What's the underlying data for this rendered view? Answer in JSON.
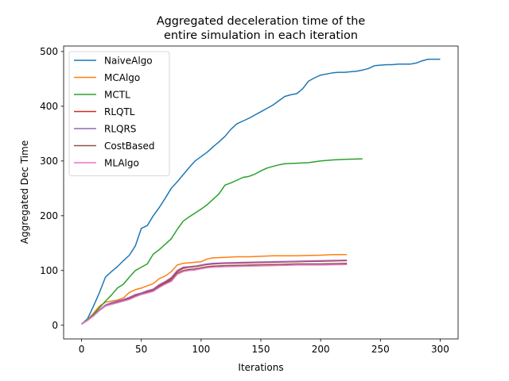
{
  "chart_data": {
    "type": "line",
    "title": "Aggregated deceleration time of the\nentire simulation in each iteration",
    "xlabel": "Iterations",
    "ylabel": "Aggregated Dec Time",
    "xlim": [
      -15,
      315
    ],
    "ylim": [
      -25,
      510
    ],
    "xticks": [
      0,
      50,
      100,
      150,
      200,
      250,
      300
    ],
    "yticks": [
      0,
      100,
      200,
      300,
      400,
      500
    ],
    "grid": false,
    "legend_position": "top-left",
    "series": [
      {
        "name": "NaiveAlgo",
        "color": "#1f77b4",
        "points": [
          [
            0,
            2
          ],
          [
            5,
            12
          ],
          [
            10,
            35
          ],
          [
            15,
            60
          ],
          [
            20,
            88
          ],
          [
            25,
            98
          ],
          [
            30,
            107
          ],
          [
            35,
            118
          ],
          [
            40,
            128
          ],
          [
            45,
            145
          ],
          [
            50,
            177
          ],
          [
            55,
            182
          ],
          [
            60,
            200
          ],
          [
            65,
            215
          ],
          [
            70,
            232
          ],
          [
            75,
            250
          ],
          [
            80,
            262
          ],
          [
            85,
            275
          ],
          [
            90,
            288
          ],
          [
            95,
            300
          ],
          [
            100,
            308
          ],
          [
            105,
            316
          ],
          [
            110,
            326
          ],
          [
            115,
            335
          ],
          [
            120,
            345
          ],
          [
            125,
            358
          ],
          [
            130,
            368
          ],
          [
            135,
            373
          ],
          [
            140,
            378
          ],
          [
            145,
            384
          ],
          [
            150,
            390
          ],
          [
            155,
            396
          ],
          [
            160,
            402
          ],
          [
            165,
            410
          ],
          [
            170,
            418
          ],
          [
            175,
            421
          ],
          [
            180,
            423
          ],
          [
            185,
            432
          ],
          [
            190,
            446
          ],
          [
            195,
            452
          ],
          [
            200,
            457
          ],
          [
            205,
            459
          ],
          [
            210,
            461
          ],
          [
            215,
            462
          ],
          [
            220,
            462
          ],
          [
            225,
            463
          ],
          [
            230,
            464
          ],
          [
            235,
            466
          ],
          [
            240,
            469
          ],
          [
            245,
            474
          ],
          [
            250,
            475
          ],
          [
            255,
            476
          ],
          [
            260,
            476
          ],
          [
            265,
            477
          ],
          [
            270,
            477
          ],
          [
            275,
            477
          ],
          [
            280,
            479
          ],
          [
            285,
            483
          ],
          [
            290,
            486
          ],
          [
            295,
            486
          ],
          [
            300,
            486
          ]
        ]
      },
      {
        "name": "MCAlgo",
        "color": "#ff7f0e",
        "points": [
          [
            0,
            2
          ],
          [
            5,
            10
          ],
          [
            10,
            22
          ],
          [
            15,
            35
          ],
          [
            20,
            42
          ],
          [
            25,
            44
          ],
          [
            30,
            46
          ],
          [
            35,
            50
          ],
          [
            40,
            60
          ],
          [
            45,
            65
          ],
          [
            50,
            68
          ],
          [
            55,
            72
          ],
          [
            60,
            76
          ],
          [
            65,
            85
          ],
          [
            70,
            90
          ],
          [
            75,
            98
          ],
          [
            80,
            110
          ],
          [
            85,
            113
          ],
          [
            90,
            114
          ],
          [
            95,
            115
          ],
          [
            100,
            116
          ],
          [
            105,
            121
          ],
          [
            110,
            123
          ],
          [
            120,
            124
          ],
          [
            130,
            125
          ],
          [
            140,
            125
          ],
          [
            150,
            126
          ],
          [
            160,
            127
          ],
          [
            180,
            127
          ],
          [
            200,
            128
          ],
          [
            210,
            129
          ],
          [
            222,
            129
          ]
        ]
      },
      {
        "name": "MCTL",
        "color": "#2ca02c",
        "points": [
          [
            0,
            2
          ],
          [
            5,
            10
          ],
          [
            10,
            20
          ],
          [
            15,
            32
          ],
          [
            20,
            44
          ],
          [
            25,
            55
          ],
          [
            30,
            68
          ],
          [
            35,
            75
          ],
          [
            40,
            88
          ],
          [
            45,
            100
          ],
          [
            50,
            106
          ],
          [
            55,
            112
          ],
          [
            60,
            130
          ],
          [
            65,
            138
          ],
          [
            70,
            148
          ],
          [
            75,
            158
          ],
          [
            80,
            175
          ],
          [
            85,
            190
          ],
          [
            90,
            198
          ],
          [
            95,
            205
          ],
          [
            100,
            212
          ],
          [
            105,
            220
          ],
          [
            110,
            230
          ],
          [
            115,
            240
          ],
          [
            120,
            256
          ],
          [
            125,
            260
          ],
          [
            130,
            265
          ],
          [
            135,
            270
          ],
          [
            140,
            272
          ],
          [
            145,
            276
          ],
          [
            150,
            282
          ],
          [
            155,
            287
          ],
          [
            160,
            290
          ],
          [
            165,
            293
          ],
          [
            170,
            295
          ],
          [
            180,
            296
          ],
          [
            190,
            297
          ],
          [
            200,
            300
          ],
          [
            210,
            302
          ],
          [
            220,
            303
          ],
          [
            235,
            304
          ]
        ]
      },
      {
        "name": "RLQTL",
        "color": "#d62728",
        "points": [
          [
            0,
            2
          ],
          [
            5,
            9
          ],
          [
            10,
            18
          ],
          [
            15,
            28
          ],
          [
            20,
            36
          ],
          [
            25,
            40
          ],
          [
            30,
            43
          ],
          [
            35,
            46
          ],
          [
            40,
            50
          ],
          [
            45,
            55
          ],
          [
            50,
            58
          ],
          [
            55,
            62
          ],
          [
            60,
            65
          ],
          [
            65,
            72
          ],
          [
            70,
            78
          ],
          [
            75,
            85
          ],
          [
            80,
            98
          ],
          [
            85,
            104
          ],
          [
            90,
            106
          ],
          [
            95,
            107
          ],
          [
            100,
            109
          ],
          [
            105,
            111
          ],
          [
            110,
            112
          ],
          [
            120,
            113
          ],
          [
            140,
            114
          ],
          [
            160,
            115
          ],
          [
            180,
            116
          ],
          [
            200,
            117
          ],
          [
            222,
            118
          ]
        ]
      },
      {
        "name": "RLQRS",
        "color": "#9467bd",
        "points": [
          [
            0,
            2
          ],
          [
            5,
            9
          ],
          [
            10,
            18
          ],
          [
            15,
            28
          ],
          [
            20,
            37
          ],
          [
            25,
            41
          ],
          [
            30,
            44
          ],
          [
            35,
            47
          ],
          [
            40,
            51
          ],
          [
            45,
            56
          ],
          [
            50,
            59
          ],
          [
            55,
            63
          ],
          [
            60,
            66
          ],
          [
            65,
            74
          ],
          [
            70,
            80
          ],
          [
            75,
            87
          ],
          [
            80,
            100
          ],
          [
            85,
            106
          ],
          [
            90,
            107
          ],
          [
            95,
            108
          ],
          [
            100,
            110
          ],
          [
            105,
            112
          ],
          [
            110,
            113
          ],
          [
            120,
            114
          ],
          [
            140,
            115
          ],
          [
            160,
            116
          ],
          [
            180,
            117
          ],
          [
            200,
            118
          ],
          [
            222,
            119
          ]
        ]
      },
      {
        "name": "CostBased",
        "color": "#8c564b",
        "points": [
          [
            0,
            2
          ],
          [
            5,
            9
          ],
          [
            10,
            17
          ],
          [
            15,
            27
          ],
          [
            20,
            35
          ],
          [
            25,
            39
          ],
          [
            30,
            42
          ],
          [
            35,
            45
          ],
          [
            40,
            48
          ],
          [
            45,
            53
          ],
          [
            50,
            57
          ],
          [
            55,
            60
          ],
          [
            60,
            63
          ],
          [
            65,
            70
          ],
          [
            70,
            76
          ],
          [
            75,
            82
          ],
          [
            80,
            95
          ],
          [
            85,
            100
          ],
          [
            90,
            102
          ],
          [
            95,
            103
          ],
          [
            100,
            105
          ],
          [
            105,
            107
          ],
          [
            110,
            108
          ],
          [
            120,
            109
          ],
          [
            140,
            110
          ],
          [
            160,
            111
          ],
          [
            180,
            112
          ],
          [
            200,
            112
          ],
          [
            222,
            113
          ]
        ]
      },
      {
        "name": "MLAlgo",
        "color": "#e377c2",
        "points": [
          [
            0,
            2
          ],
          [
            5,
            9
          ],
          [
            10,
            17
          ],
          [
            15,
            27
          ],
          [
            20,
            35
          ],
          [
            25,
            38
          ],
          [
            30,
            41
          ],
          [
            35,
            44
          ],
          [
            40,
            47
          ],
          [
            45,
            52
          ],
          [
            50,
            56
          ],
          [
            55,
            59
          ],
          [
            60,
            62
          ],
          [
            65,
            69
          ],
          [
            70,
            75
          ],
          [
            75,
            80
          ],
          [
            80,
            93
          ],
          [
            85,
            98
          ],
          [
            90,
            100
          ],
          [
            95,
            101
          ],
          [
            100,
            103
          ],
          [
            105,
            105
          ],
          [
            110,
            106
          ],
          [
            120,
            107
          ],
          [
            140,
            108
          ],
          [
            160,
            109
          ],
          [
            180,
            110
          ],
          [
            200,
            110
          ],
          [
            222,
            111
          ]
        ]
      }
    ]
  }
}
